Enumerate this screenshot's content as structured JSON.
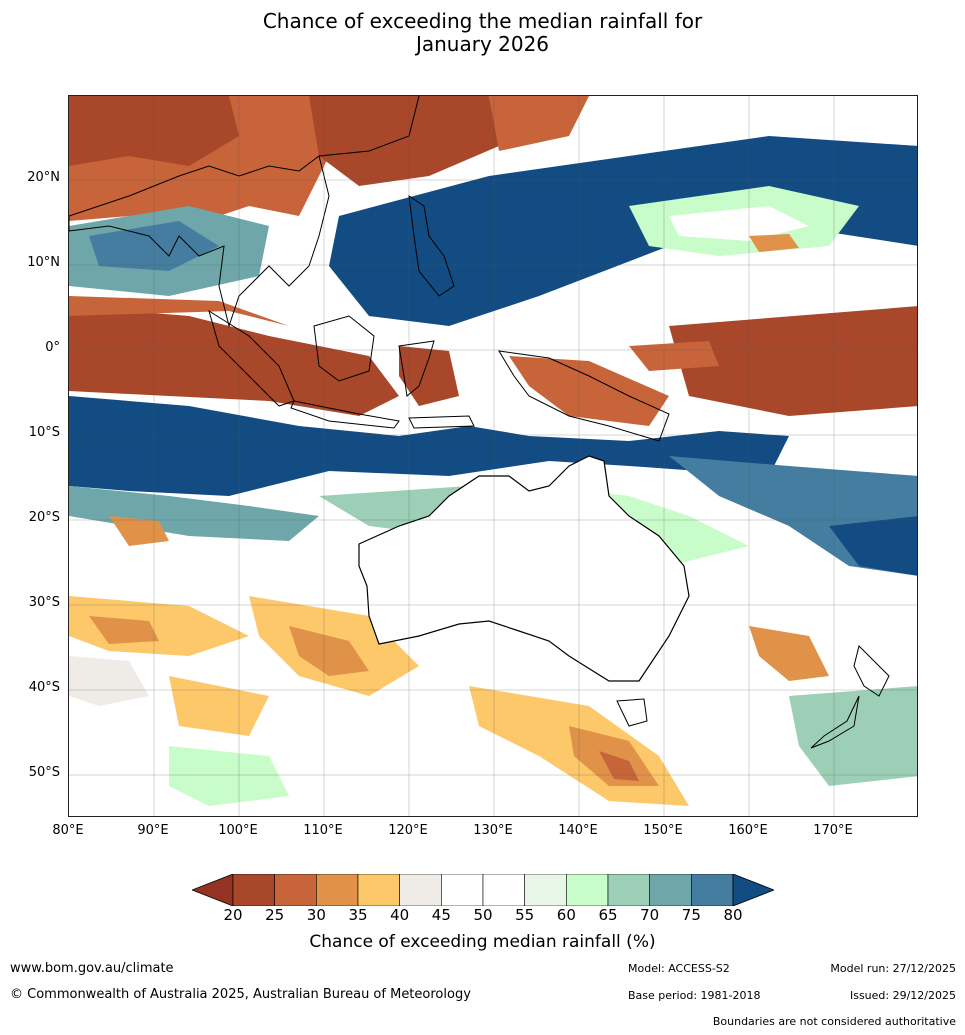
{
  "title_line1": "Chance of exceeding the median rainfall for",
  "title_line2": "January 2026",
  "lat_ticks": [
    "20°N",
    "10°N",
    "0°",
    "10°S",
    "20°S",
    "30°S",
    "40°S",
    "50°S"
  ],
  "lon_ticks": [
    "80°E",
    "90°E",
    "100°E",
    "110°E",
    "120°E",
    "130°E",
    "140°E",
    "150°E",
    "160°E",
    "170°E"
  ],
  "colorbar": {
    "ticks": [
      "20",
      "25",
      "30",
      "35",
      "40",
      "45",
      "50",
      "55",
      "60",
      "65",
      "70",
      "75",
      "80"
    ],
    "label": "Chance of exceeding median rainfall (%)",
    "colors": [
      "#a8472a",
      "#c8643a",
      "#e09248",
      "#fdc86a",
      "#efebe6",
      "#ffffff",
      "#ffffff",
      "#e8f6e8",
      "#c8fcc8",
      "#9ccfb6",
      "#6fa6aa",
      "#457da0"
    ],
    "low_extend_color": "#943323",
    "high_extend_color": "#124c82"
  },
  "footer": {
    "url": "www.bom.gov.au/climate",
    "copyright": "© Commonwealth of Australia 2025, Australian Bureau of Meteorology",
    "model": "Model: ACCESS-S2",
    "base_period": "Base period: 1981-2018",
    "model_run": "Model run: 27/12/2025",
    "issued": "Issued: 29/12/2025",
    "disclaimer": "Boundaries are not considered authoritative"
  }
}
